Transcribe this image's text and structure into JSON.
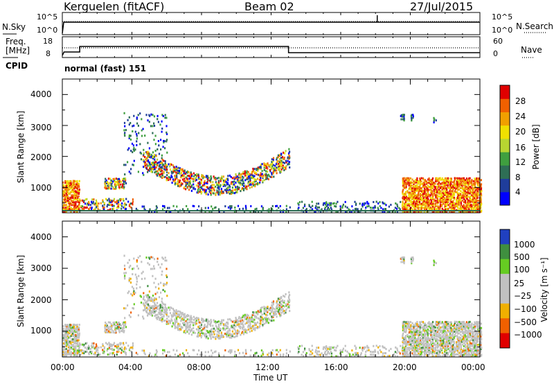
{
  "header": {
    "station": "Kerguelen (fitACF)",
    "beam": "Beam 02",
    "date": "27/Jul/2015"
  },
  "status_panels": {
    "nsky_label": "N.Sky",
    "nsky_ticks": [
      "10^5",
      "10^0"
    ],
    "nsearch_label": "N.Search",
    "nsearch_ticks": [
      "10^5",
      "10^0"
    ],
    "freq_label_1": "Freq.",
    "freq_label_2": "[MHz]",
    "freq_ticks": [
      "18",
      "8"
    ],
    "nave_label": "Nave",
    "nave_ticks": [
      "60",
      "0"
    ],
    "cpid_label": "CPID",
    "cpid_value": "normal (fast) 151"
  },
  "chart_data": [
    {
      "type": "heatmap",
      "panel": "power",
      "ylabel": "Slant Range [km]",
      "yticks": [
        "4000",
        "3000",
        "2000",
        "1000"
      ],
      "ylim": [
        180,
        4500
      ],
      "colorbar_label": "Power [dB]",
      "colorbar_ticks": [
        "28",
        "24",
        "20",
        "16",
        "12",
        "8",
        "4"
      ],
      "colorbar_colors": [
        "#0000ff",
        "#1f3d9b",
        "#2e6e55",
        "#3f9f3f",
        "#b7d631",
        "#f0e000",
        "#f0a000",
        "#f06000",
        "#e00000"
      ],
      "echo_regions": [
        {
          "t": [
            0.0,
            1.0
          ],
          "range": [
            200,
            1300
          ],
          "level": "high"
        },
        {
          "t": [
            1.0,
            4.0
          ],
          "range": [
            300,
            1300
          ],
          "level": "mid"
        },
        {
          "t": [
            3.5,
            6.0
          ],
          "range": [
            1500,
            3500
          ],
          "level": "low"
        },
        {
          "t": [
            4.5,
            13.0
          ],
          "range": [
            700,
            2500
          ],
          "level": "mixed"
        },
        {
          "t": [
            14.0,
            19.5
          ],
          "range": [
            200,
            600
          ],
          "level": "low"
        },
        {
          "t": [
            19.0,
            19.5
          ],
          "range": [
            3100,
            3300
          ],
          "level": "low"
        },
        {
          "t": [
            19.5,
            24.0
          ],
          "range": [
            200,
            1300
          ],
          "level": "high"
        }
      ]
    },
    {
      "type": "heatmap",
      "panel": "velocity",
      "ylabel": "Slant Range [km]",
      "yticks": [
        "4000",
        "3000",
        "2000",
        "1000"
      ],
      "ylim": [
        180,
        4500
      ],
      "colorbar_label": "Velocity [m s⁻¹]",
      "colorbar_ticks": [
        "1000",
        "500",
        "100",
        "25",
        "−25",
        "−100",
        "−500",
        "−1000"
      ],
      "colorbar_colors": [
        "#2040c0",
        "#3f8f3f",
        "#66cc22",
        "#c0c0c0",
        "#c0c0c0",
        "#f0b000",
        "#f06000",
        "#e00000"
      ],
      "xlabel": "Time UT",
      "xticks": [
        "00:00",
        "04:00",
        "08:00",
        "12:00",
        "16:00",
        "20:00",
        "00:00"
      ]
    }
  ]
}
